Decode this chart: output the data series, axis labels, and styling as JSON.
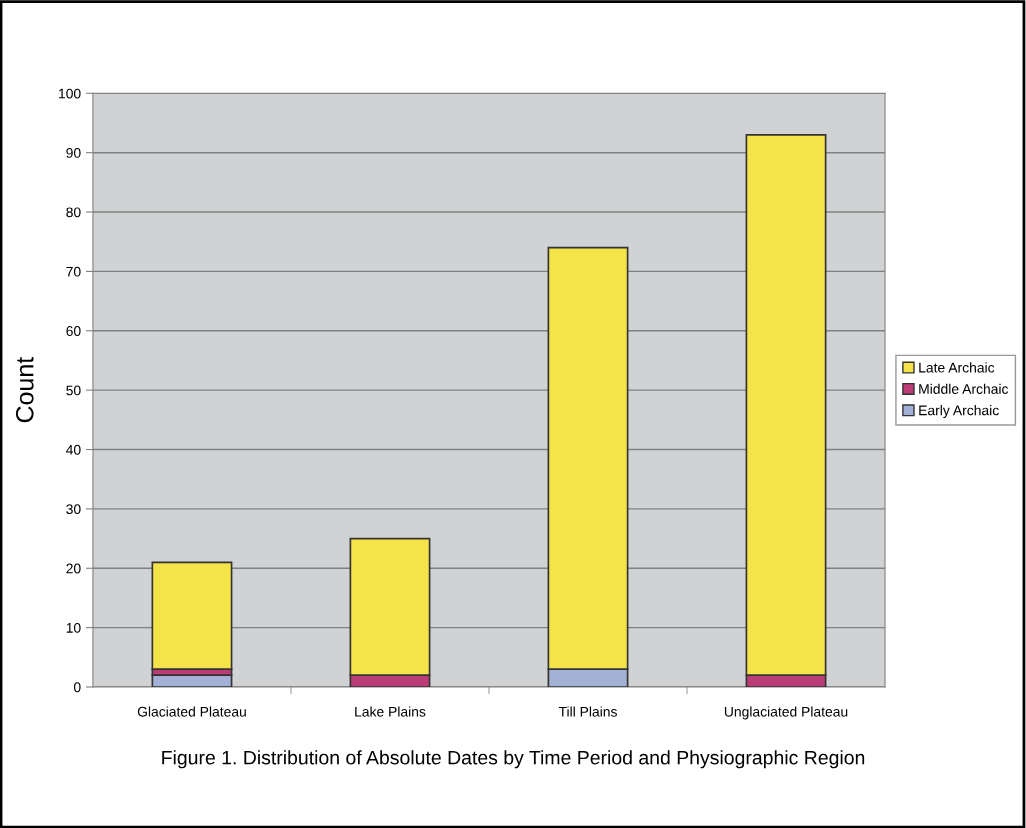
{
  "chart_data": {
    "type": "bar",
    "stacked": true,
    "ylabel": "Count",
    "categories": [
      "Glaciated Plateau",
      "Lake Plains",
      "Till Plains",
      "Unglaciated Plateau"
    ],
    "series": [
      {
        "name": "Early Archaic",
        "color": "#a3b1d6",
        "values": [
          2,
          0,
          3,
          0
        ]
      },
      {
        "name": "Middle Archaic",
        "color": "#bc3c78",
        "values": [
          1,
          2,
          0,
          2
        ]
      },
      {
        "name": "Late Archaic",
        "color": "#f5e34a",
        "values": [
          18,
          23,
          71,
          91
        ]
      }
    ],
    "ylim": [
      0,
      100
    ],
    "yticks": [
      0,
      10,
      20,
      30,
      40,
      50,
      60,
      70,
      80,
      90,
      100
    ],
    "grid": "y",
    "legend": "right",
    "annotations": [
      "Figure 1. Distribution of Absolute Dates by Time Period and Physiographic Region"
    ]
  }
}
